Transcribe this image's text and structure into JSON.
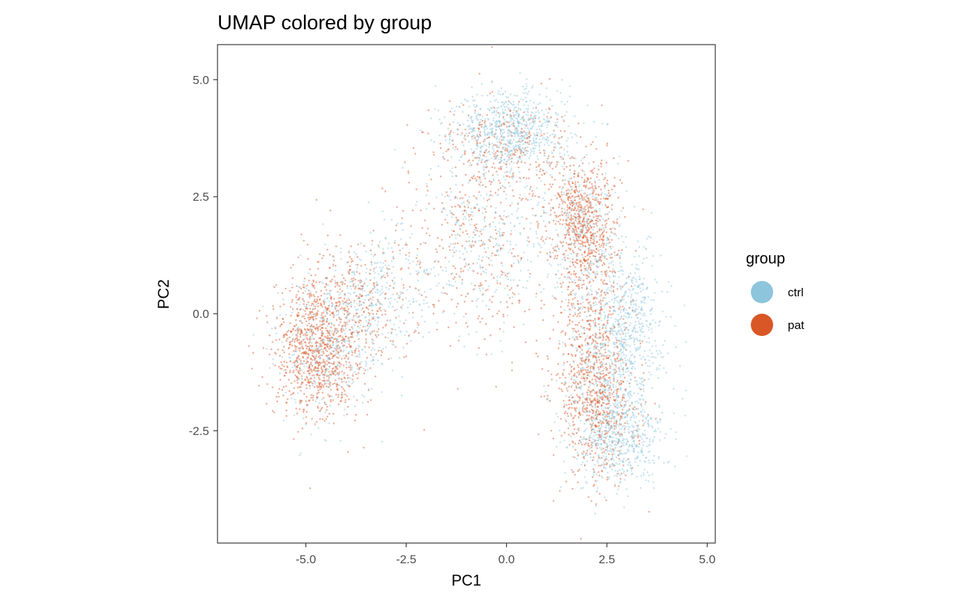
{
  "chart_data": {
    "type": "scatter",
    "title": "UMAP colored by group",
    "xlabel": "PC1",
    "ylabel": "PC2",
    "xlim": [
      -7.2,
      5.2
    ],
    "ylim": [
      -4.9,
      5.75
    ],
    "x_ticks": [
      {
        "value": -5.0,
        "label": "-5.0"
      },
      {
        "value": -2.5,
        "label": "-2.5"
      },
      {
        "value": 0.0,
        "label": "0.0"
      },
      {
        "value": 2.5,
        "label": "2.5"
      },
      {
        "value": 5.0,
        "label": "5.0"
      }
    ],
    "y_ticks": [
      {
        "value": 5.0,
        "label": "5.0"
      },
      {
        "value": 2.5,
        "label": "2.5"
      },
      {
        "value": 0.0,
        "label": "0.0"
      },
      {
        "value": -2.5,
        "label": "-2.5"
      }
    ],
    "grid": false,
    "legend": {
      "title": "group",
      "placement": "right",
      "entries": [
        {
          "name": "ctrl",
          "color": "#8cc5dc"
        },
        {
          "name": "pat",
          "color": "#d95726"
        }
      ]
    },
    "series": [
      {
        "name": "ctrl",
        "color": "#8cc5dc",
        "clusters": [
          {
            "cx": 0.1,
            "cy": 3.9,
            "sx": 0.75,
            "sy": 0.45,
            "weight": 0.22
          },
          {
            "cx": 2.8,
            "cy": -2.6,
            "sx": 0.55,
            "sy": 0.5,
            "weight": 0.14
          },
          {
            "cx": 3.0,
            "cy": -0.2,
            "sx": 0.45,
            "sy": 0.9,
            "weight": 0.16
          },
          {
            "cx": 1.9,
            "cy": 1.8,
            "sx": 0.45,
            "sy": 0.8,
            "weight": 0.08
          },
          {
            "cx": -4.4,
            "cy": -0.7,
            "sx": 0.65,
            "sy": 0.75,
            "weight": 0.12
          },
          {
            "cx": -3.2,
            "cy": 0.4,
            "sx": 0.6,
            "sy": 0.7,
            "weight": 0.08
          },
          {
            "cx": -0.6,
            "cy": 1.6,
            "sx": 0.8,
            "sy": 1.0,
            "weight": 0.1
          },
          {
            "cx": 2.3,
            "cy": -1.4,
            "sx": 0.5,
            "sy": 0.9,
            "weight": 0.1
          }
        ]
      },
      {
        "name": "pat",
        "color": "#d95726",
        "clusters": [
          {
            "cx": -4.7,
            "cy": -0.7,
            "sx": 0.55,
            "sy": 0.75,
            "weight": 0.26
          },
          {
            "cx": -3.6,
            "cy": 0.2,
            "sx": 0.7,
            "sy": 0.75,
            "weight": 0.08
          },
          {
            "cx": 1.9,
            "cy": 2.1,
            "sx": 0.4,
            "sy": 0.6,
            "weight": 0.18
          },
          {
            "cx": 2.2,
            "cy": -1.8,
            "sx": 0.5,
            "sy": 0.85,
            "weight": 0.2
          },
          {
            "cx": 2.1,
            "cy": 0.3,
            "sx": 0.4,
            "sy": 0.9,
            "weight": 0.1
          },
          {
            "cx": 0.0,
            "cy": 3.5,
            "sx": 0.8,
            "sy": 0.55,
            "weight": 0.08
          },
          {
            "cx": -0.8,
            "cy": 1.5,
            "sx": 0.9,
            "sy": 1.1,
            "weight": 0.1
          }
        ]
      }
    ]
  }
}
